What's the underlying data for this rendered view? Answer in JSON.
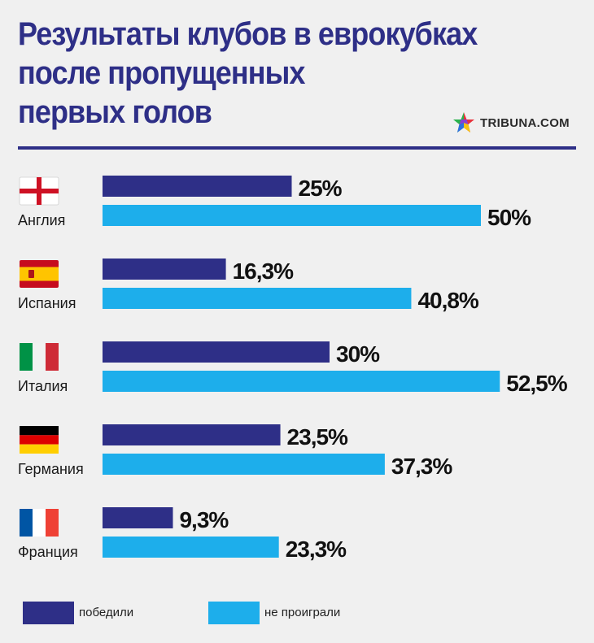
{
  "title_lines": [
    "Результаты клубов в еврокубках",
    "после пропущенных",
    "первых голов"
  ],
  "brand": {
    "name": "TRIBUNA.COM",
    "icon": "multicolor-star-icon"
  },
  "colors": {
    "won": "#2e2f87",
    "not_lost": "#1daeeb",
    "title": "#2e2f87",
    "background": "#f0f0f0"
  },
  "legend": [
    {
      "label": "победили",
      "color": "#2e2f87"
    },
    {
      "label": "не проиграли",
      "color": "#1daeeb"
    }
  ],
  "chart_data": {
    "type": "bar",
    "orientation": "horizontal",
    "categories": [
      "Англия",
      "Испания",
      "Италия",
      "Германия",
      "Франция"
    ],
    "flags": [
      "england-flag",
      "spain-flag",
      "italy-flag",
      "germany-flag",
      "france-flag"
    ],
    "series": [
      {
        "name": "победили",
        "values": [
          25,
          16.3,
          30,
          23.5,
          9.3
        ],
        "labels": [
          "25%",
          "16,3%",
          "30%",
          "23,5%",
          "9,3%"
        ]
      },
      {
        "name": "не проиграли",
        "values": [
          50,
          40.8,
          52.5,
          37.3,
          23.3
        ],
        "labels": [
          "50%",
          "40,8%",
          "52,5%",
          "37,3%",
          "23,3%"
        ]
      }
    ],
    "xlim": [
      0,
      100
    ],
    "grid": false,
    "legend_position": "bottom"
  }
}
